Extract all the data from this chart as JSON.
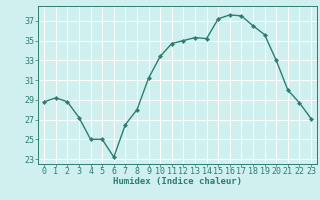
{
  "x": [
    0,
    1,
    2,
    3,
    4,
    5,
    6,
    7,
    8,
    9,
    10,
    11,
    12,
    13,
    14,
    15,
    16,
    17,
    18,
    19,
    20,
    21,
    22,
    23
  ],
  "y": [
    28.8,
    29.2,
    28.8,
    27.2,
    25.0,
    25.0,
    23.2,
    26.5,
    28.0,
    31.2,
    33.4,
    34.7,
    35.0,
    35.3,
    35.2,
    37.2,
    37.6,
    37.5,
    36.5,
    35.6,
    33.0,
    30.0,
    28.7,
    27.1
  ],
  "bg_color": "#cff0ee",
  "line_color": "#2e7d72",
  "marker_color": "#2e7d72",
  "grid_color": "#ffffff",
  "axis_color": "#2e7d72",
  "xlabel": "Humidex (Indice chaleur)",
  "xlim": [
    -0.5,
    23.5
  ],
  "ylim": [
    22.5,
    38.5
  ],
  "yticks": [
    23,
    25,
    27,
    29,
    31,
    33,
    35,
    37
  ],
  "xticks": [
    0,
    1,
    2,
    3,
    4,
    5,
    6,
    7,
    8,
    9,
    10,
    11,
    12,
    13,
    14,
    15,
    16,
    17,
    18,
    19,
    20,
    21,
    22,
    23
  ],
  "xlabel_fontsize": 6.5,
  "tick_fontsize": 6.0,
  "line_width": 1.0,
  "marker_size": 2.2
}
